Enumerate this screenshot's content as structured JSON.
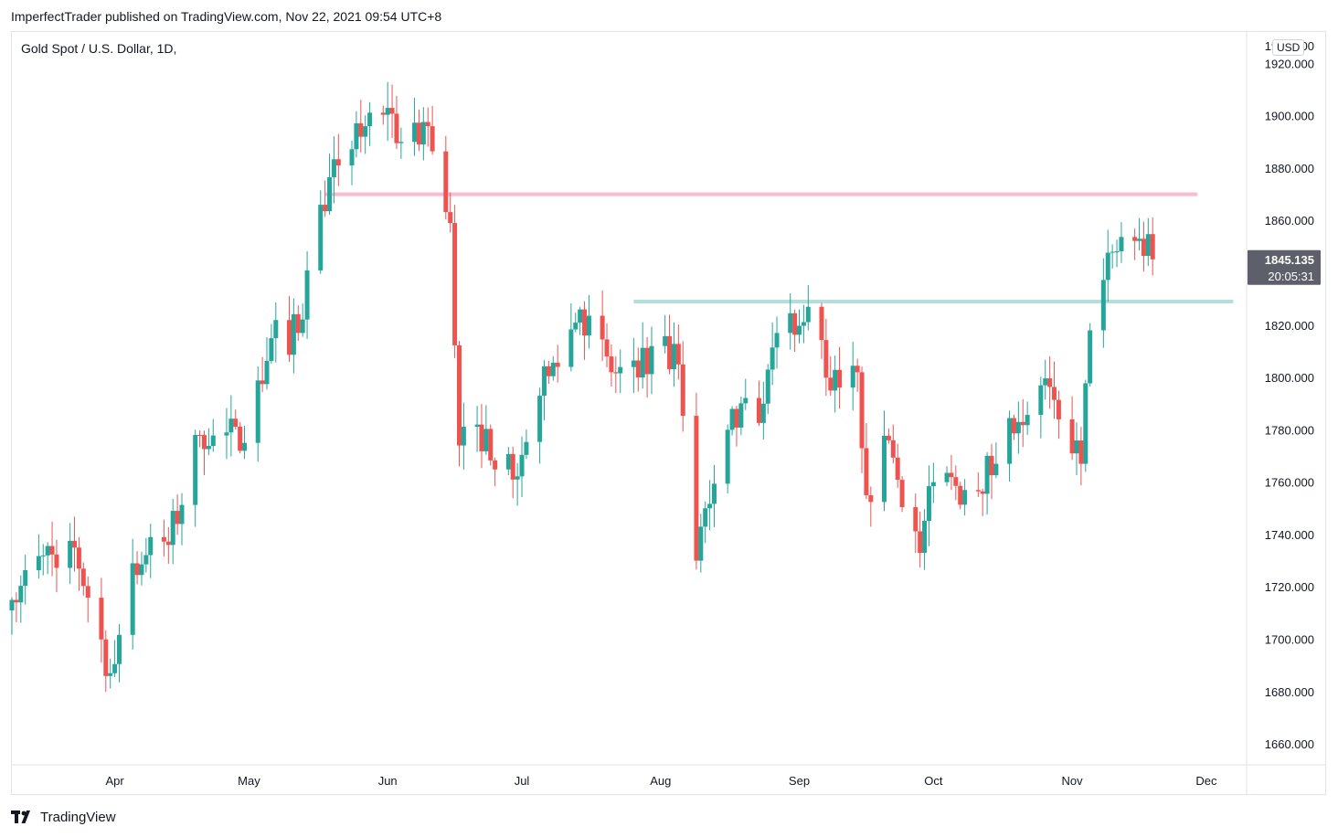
{
  "header": {
    "published": "ImperfectTrader published on TradingView.com, Nov 22, 2021 09:54 UTC+8"
  },
  "symbol": {
    "title": "Gold Spot / U.S. Dollar, 1D,"
  },
  "currency": "USD",
  "footer": {
    "brand": "TradingView",
    "logo_icon": "tradingview-logo-icon"
  },
  "colors": {
    "up": "#26a69a",
    "down": "#ef5350",
    "resistance": "#f8bbd0",
    "support": "#b2dfdb",
    "price_label_bg": "#5d606b"
  },
  "chart_data": {
    "type": "candlestick",
    "title": "Gold Spot / U.S. Dollar, 1D,",
    "ylim": [
      1652,
      1932
    ],
    "yticks": [
      1660,
      1680,
      1700,
      1720,
      1740,
      1760,
      1780,
      1800,
      1820,
      1840,
      1860,
      1880,
      1900,
      1920
    ],
    "ytick_labels": [
      "1660.000",
      "1680.000",
      "1700.000",
      "1720.000",
      "1740.000",
      "1760.000",
      "1780.000",
      "1800.000",
      "1820.000",
      "1840.000",
      "1860.000",
      "1880.000",
      "1900.000",
      "1920.000"
    ],
    "top_tick_label": "1940.000",
    "xtick_labels": [
      "Apr",
      "May",
      "Jun",
      "Jul",
      "Aug",
      "Sep",
      "Oct",
      "Nov",
      "Dec"
    ],
    "xtick_dates": [
      "2021-04-01",
      "2021-05-01",
      "2021-06-01",
      "2021-07-01",
      "2021-08-01",
      "2021-09-01",
      "2021-10-01",
      "2021-11-01",
      "2021-12-01"
    ],
    "date_range": [
      "2021-03-09",
      "2021-12-10"
    ],
    "current_price": {
      "value": 1845.135,
      "label": "1845.135",
      "countdown": "20:05:31"
    },
    "levels": [
      {
        "name": "resistance",
        "value": 1870,
        "from": "2021-05-18",
        "to": "2021-11-29"
      },
      {
        "name": "support",
        "value": 1829,
        "from": "2021-07-26",
        "to": "2021-12-07"
      }
    ],
    "anchors": [
      [
        "2021-03-09",
        1715
      ],
      [
        "2021-03-16",
        1732
      ],
      [
        "2021-03-23",
        1735
      ],
      [
        "2021-03-31",
        1687
      ],
      [
        "2021-04-05",
        1729
      ],
      [
        "2021-04-13",
        1736
      ],
      [
        "2021-04-20",
        1778
      ],
      [
        "2021-04-26",
        1779
      ],
      [
        "2021-04-30",
        1775
      ],
      [
        "2021-05-06",
        1815
      ],
      [
        "2021-05-12",
        1817
      ],
      [
        "2021-05-17",
        1866
      ],
      [
        "2021-05-21",
        1881
      ],
      [
        "2021-05-27",
        1896
      ],
      [
        "2021-06-01",
        1903
      ],
      [
        "2021-06-04",
        1890
      ],
      [
        "2021-06-10",
        1896
      ],
      [
        "2021-06-15",
        1859
      ],
      [
        "2021-06-17",
        1774
      ],
      [
        "2021-06-21",
        1782
      ],
      [
        "2021-06-29",
        1761
      ],
      [
        "2021-07-05",
        1793
      ],
      [
        "2021-07-14",
        1826
      ],
      [
        "2021-07-21",
        1802
      ],
      [
        "2021-07-27",
        1800
      ],
      [
        "2021-07-30",
        1812
      ],
      [
        "2021-08-05",
        1805
      ],
      [
        "2021-08-09",
        1730
      ],
      [
        "2021-08-11",
        1750
      ],
      [
        "2021-08-16",
        1780
      ],
      [
        "2021-08-24",
        1790
      ],
      [
        "2021-08-27",
        1817
      ],
      [
        "2021-09-03",
        1827
      ],
      [
        "2021-09-08",
        1795
      ],
      [
        "2021-09-14",
        1802
      ],
      [
        "2021-09-16",
        1755
      ],
      [
        "2021-09-21",
        1776
      ],
      [
        "2021-09-28",
        1733
      ],
      [
        "2021-10-01",
        1760
      ],
      [
        "2021-10-08",
        1757
      ],
      [
        "2021-10-15",
        1767
      ],
      [
        "2021-10-20",
        1783
      ],
      [
        "2021-10-25",
        1797
      ],
      [
        "2021-10-29",
        1784
      ],
      [
        "2021-11-03",
        1767
      ],
      [
        "2021-11-05",
        1818
      ],
      [
        "2021-11-10",
        1848
      ],
      [
        "2021-11-16",
        1853
      ],
      [
        "2021-11-19",
        1845.135
      ]
    ]
  }
}
